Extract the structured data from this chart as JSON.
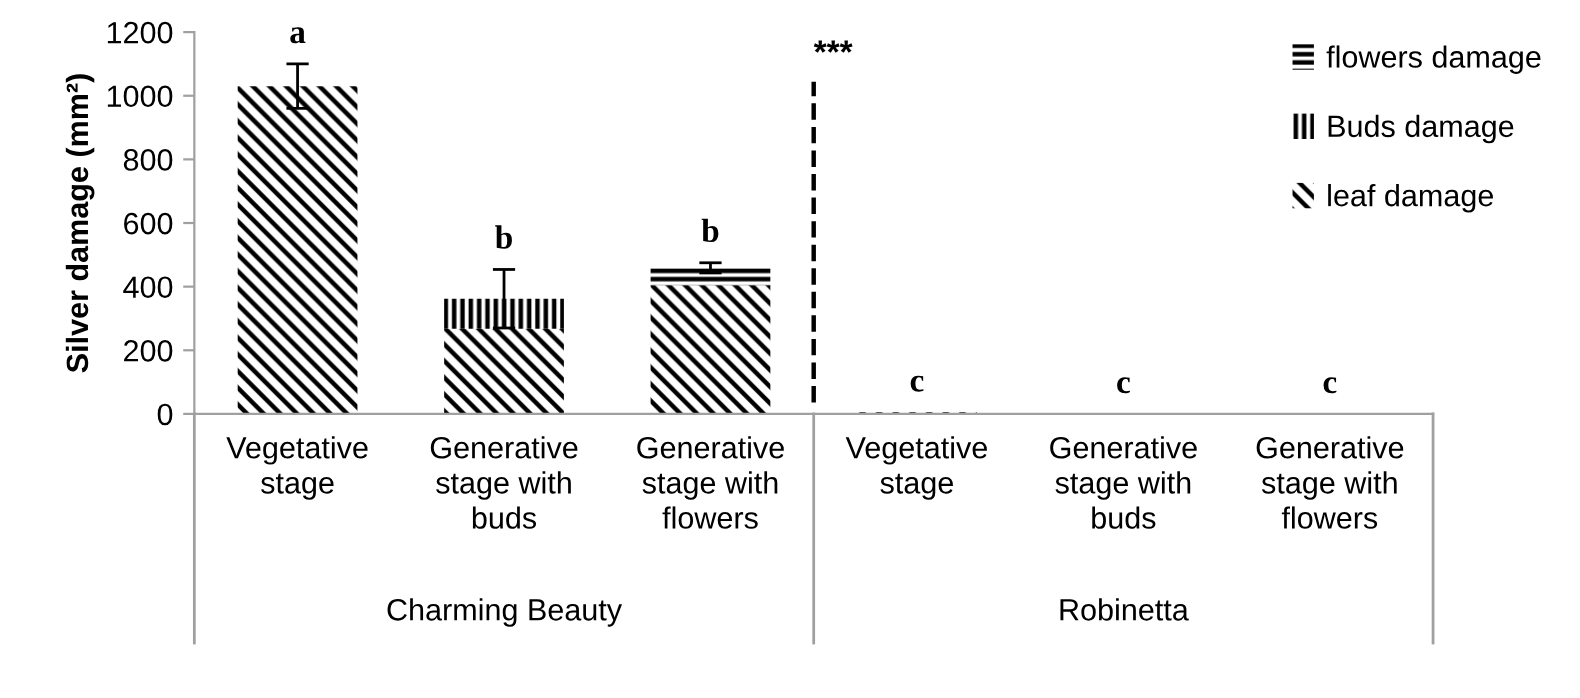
{
  "chart_data": {
    "type": "bar",
    "stacked": true,
    "ylabel": "Silver damage (mm²)",
    "categories": [
      "Vegetative stage",
      "Generative stage with buds",
      "Generative stage with flowers",
      "Vegetative stage",
      "Generative stage with buds",
      "Generative stage with flowers"
    ],
    "series": [
      {
        "name": "leaf damage",
        "color": "#000000",
        "values": [
          1030,
          268,
          404,
          5,
          0,
          0
        ]
      },
      {
        "name": "Buds damage",
        "color": "#000000",
        "values": [
          0,
          94,
          0,
          0,
          0,
          0
        ]
      },
      {
        "name": "flowers damage",
        "color": "#000000",
        "values": [
          0,
          0,
          55,
          0,
          0,
          0
        ],
        "errors": [
          70,
          92,
          16,
          null,
          null,
          null
        ]
      }
    ],
    "value_labels": [
      "a",
      "b",
      "b",
      "c",
      "c",
      "c"
    ],
    "annotations": [
      "***",
      "Charming Beauty",
      "Robinetta"
    ],
    "ylim": [
      0,
      1200
    ],
    "yticks": [
      0,
      200,
      400,
      600,
      800,
      1000,
      1200
    ],
    "grid": false,
    "legend": "top right"
  }
}
